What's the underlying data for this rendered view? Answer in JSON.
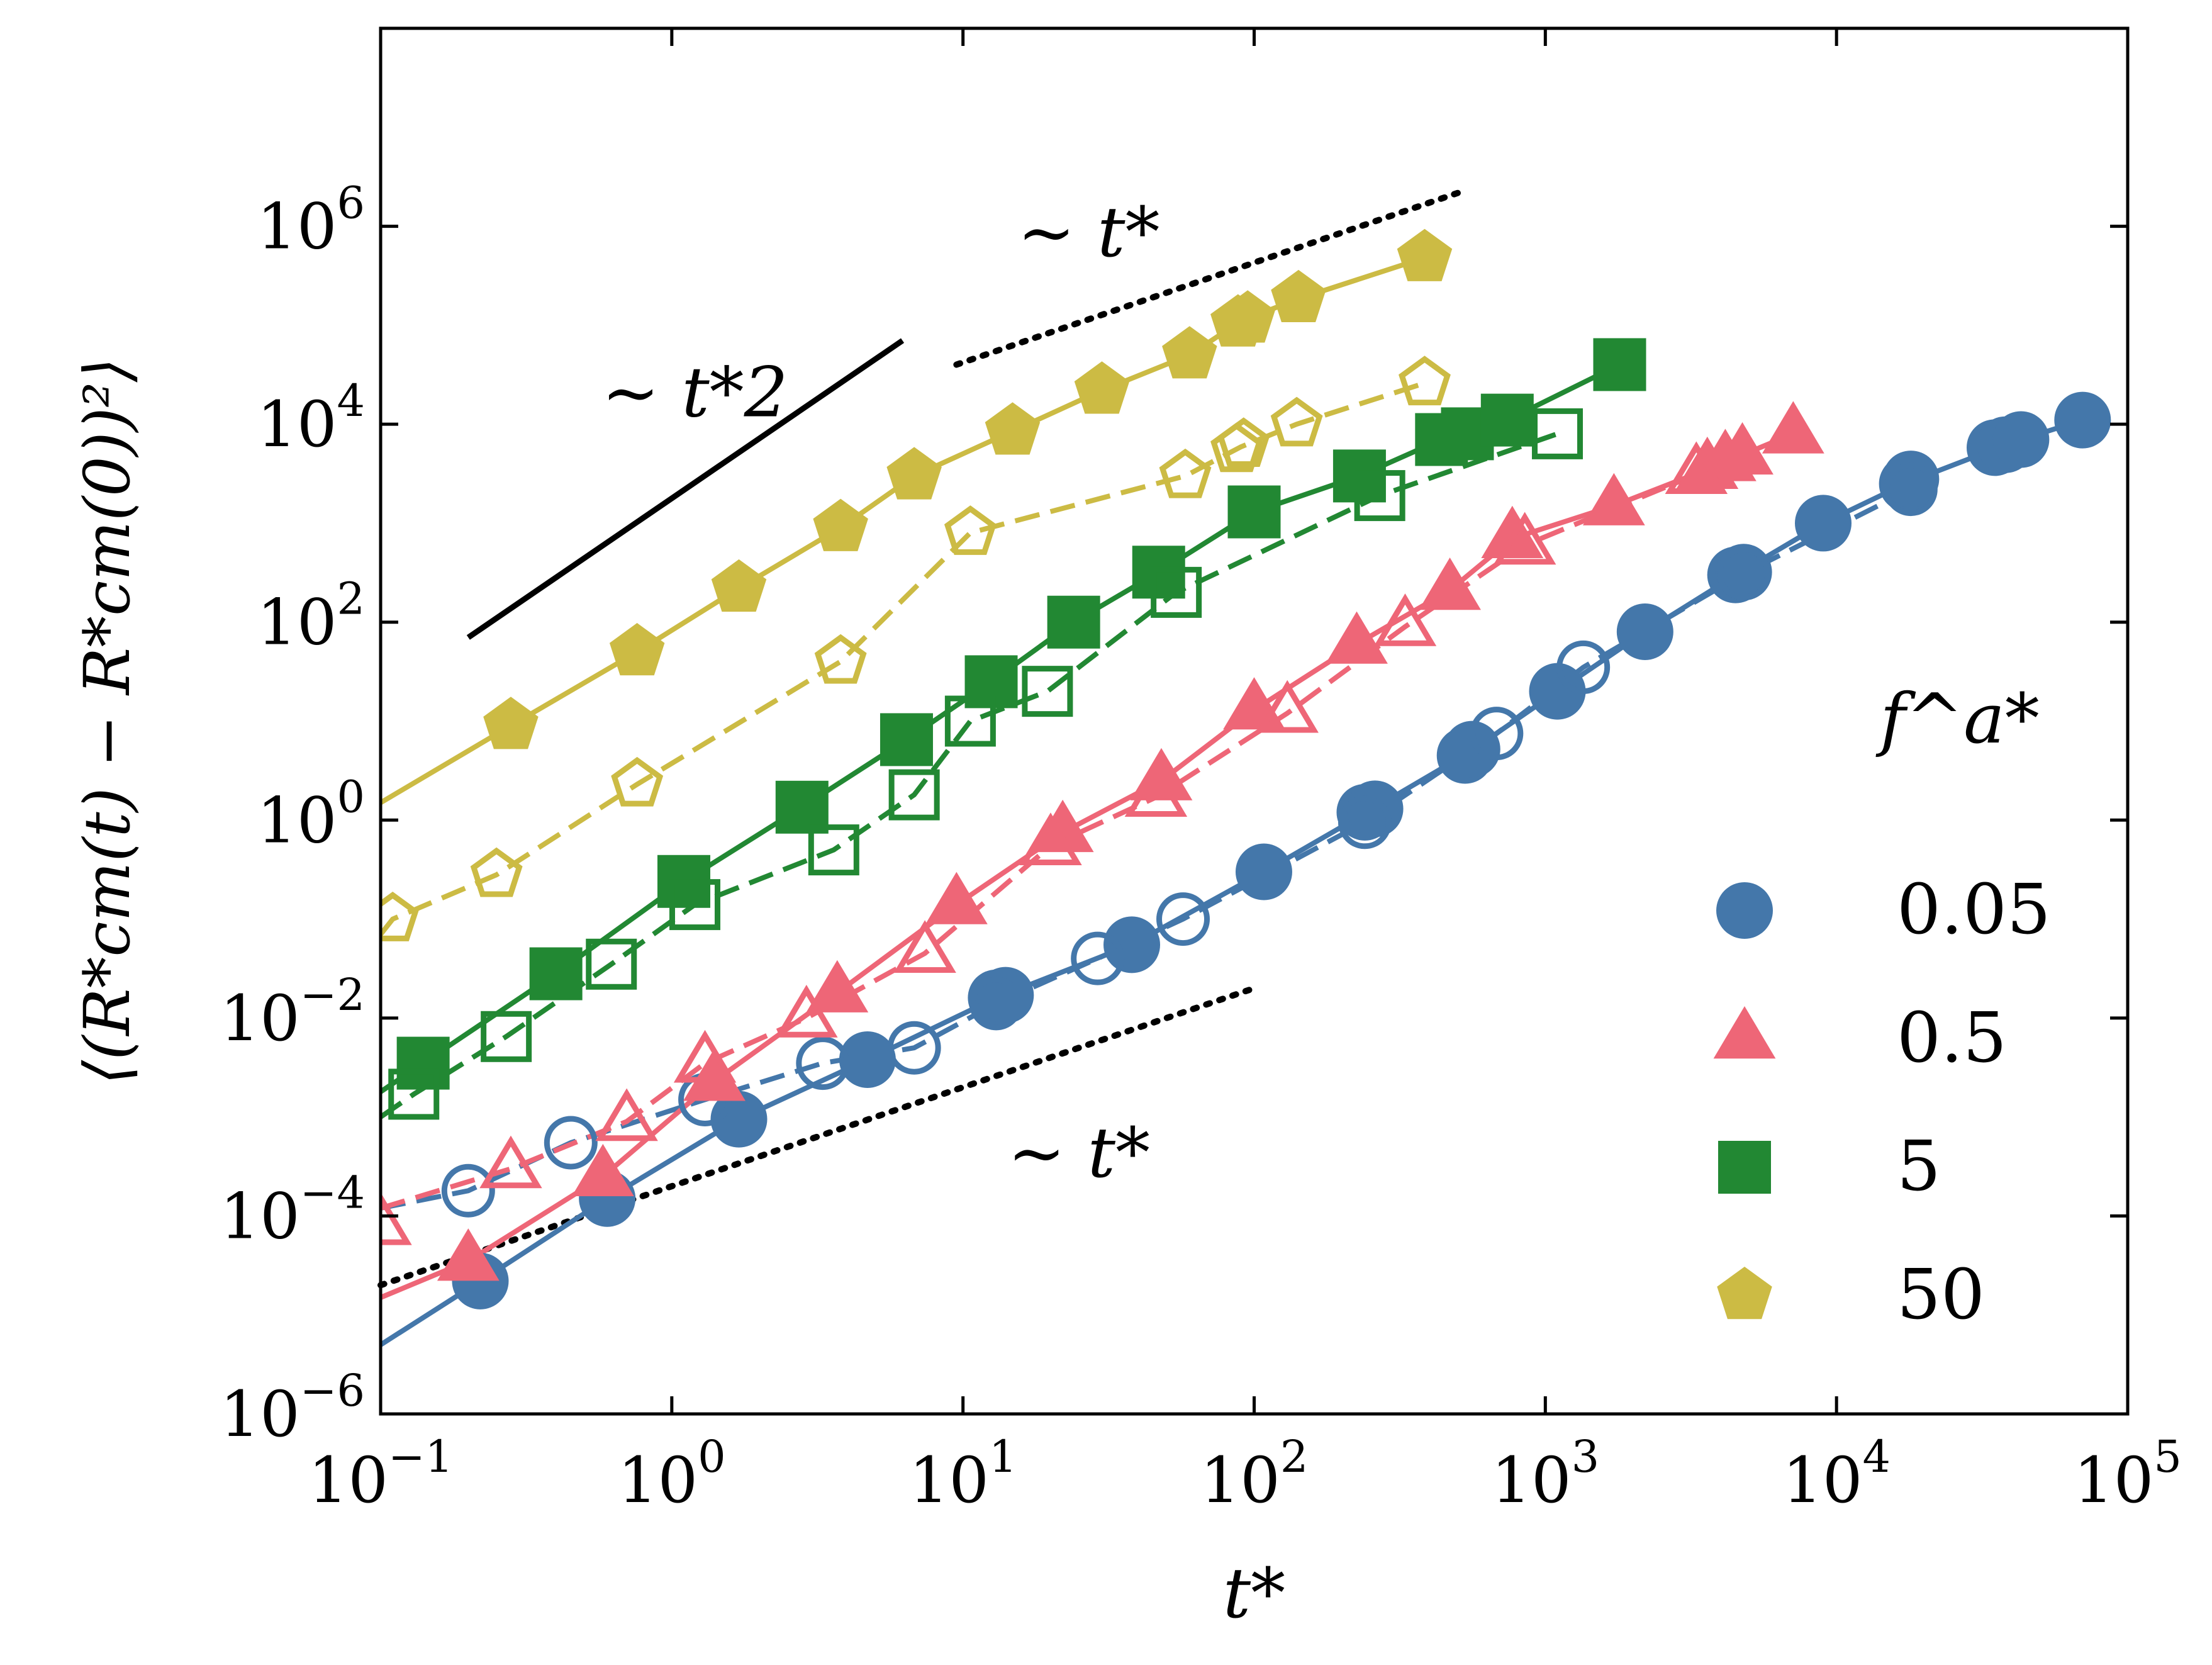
{
  "chart_data": {
    "type": "scatter",
    "xscale": "log",
    "yscale": "log",
    "xlim": [
      0.1,
      100000
    ],
    "ylim": [
      1e-06,
      100000000
    ],
    "xlabel": "t*",
    "ylabel": "⟨(R*cm(t) − R*cm(0))²⟩",
    "x_ticks": [
      {
        "value": 0.1,
        "base": "10",
        "exp": "−1"
      },
      {
        "value": 1,
        "base": "10",
        "exp": "0"
      },
      {
        "value": 10,
        "base": "10",
        "exp": "1"
      },
      {
        "value": 100,
        "base": "10",
        "exp": "2"
      },
      {
        "value": 1000,
        "base": "10",
        "exp": "3"
      },
      {
        "value": 10000,
        "base": "10",
        "exp": "4"
      },
      {
        "value": 100000,
        "base": "10",
        "exp": "5"
      }
    ],
    "y_ticks": [
      {
        "value": 1e-06,
        "base": "10",
        "exp": "−6"
      },
      {
        "value": 0.0001,
        "base": "10",
        "exp": "−4"
      },
      {
        "value": 0.01,
        "base": "10",
        "exp": "−2"
      },
      {
        "value": 1,
        "base": "10",
        "exp": "0"
      },
      {
        "value": 100,
        "base": "10",
        "exp": "2"
      },
      {
        "value": 10000,
        "base": "10",
        "exp": "4"
      },
      {
        "value": 1000000,
        "base": "10",
        "exp": "6"
      }
    ],
    "legend": {
      "title": "f^a*",
      "position": "lower-right",
      "entries": [
        {
          "label": "0.05",
          "color": "#4477aa",
          "marker": "circle"
        },
        {
          "label": "0.5",
          "color": "#ee6677",
          "marker": "triangle"
        },
        {
          "label": "5",
          "color": "#228833",
          "marker": "square"
        },
        {
          "label": "50",
          "color": "#ccbb44",
          "marker": "pentagon"
        }
      ]
    },
    "series": [
      {
        "name": "0.05",
        "color": "#4477aa",
        "marker": "circle",
        "filled": true,
        "points": [
          [
            0.22,
            2.2e-05
          ],
          [
            0.6,
            0.00015
          ],
          [
            1.7,
            0.00095
          ],
          [
            4.7,
            0.0038
          ],
          [
            13,
            0.016
          ],
          [
            14,
            0.017
          ],
          [
            38,
            0.055
          ],
          [
            108,
            0.3
          ],
          [
            240,
            1.2
          ],
          [
            260,
            1.3
          ],
          [
            530,
            4.5
          ],
          [
            560,
            5.2
          ],
          [
            1100,
            20
          ],
          [
            2200,
            80
          ],
          [
            4500,
            300
          ],
          [
            4800,
            320
          ],
          [
            9000,
            1000
          ],
          [
            17500,
            2500
          ],
          [
            18000,
            2800
          ],
          [
            35000,
            5800
          ],
          [
            38000,
            6200
          ],
          [
            43000,
            7000
          ],
          [
            70000,
            11000
          ]
        ],
        "line": [
          [
            0.1,
            5e-06
          ],
          [
            0.22,
            2.2e-05
          ],
          [
            0.6,
            0.00015
          ],
          [
            1.7,
            0.00095
          ],
          [
            4.7,
            0.0038
          ],
          [
            13,
            0.016
          ],
          [
            38,
            0.055
          ],
          [
            108,
            0.3
          ],
          [
            250,
            1.25
          ],
          [
            545,
            4.8
          ],
          [
            1100,
            20
          ],
          [
            2200,
            80
          ],
          [
            4600,
            310
          ],
          [
            9000,
            1000
          ],
          [
            17700,
            2600
          ],
          [
            36000,
            5800
          ],
          [
            43000,
            7000
          ],
          [
            70000,
            11000
          ]
        ]
      },
      {
        "name": "0.05 open",
        "color": "#4477aa",
        "marker": "circle",
        "filled": false,
        "dashed": true,
        "points": [
          [
            0.2,
            0.00018
          ],
          [
            0.45,
            0.00055
          ],
          [
            1.3,
            0.0015
          ],
          [
            3.3,
            0.0035
          ],
          [
            6.8,
            0.005
          ],
          [
            13,
            0.014
          ],
          [
            29,
            0.04
          ],
          [
            57,
            0.1
          ],
          [
            240,
            0.95
          ],
          [
            680,
            7.5
          ],
          [
            1350,
            35
          ],
          [
            4800,
            310
          ],
          [
            18000,
            2200
          ]
        ],
        "line": [
          [
            0.1,
            0.00012
          ],
          [
            0.2,
            0.00018
          ],
          [
            0.45,
            0.00055
          ],
          [
            1.3,
            0.0015
          ],
          [
            3.3,
            0.0035
          ],
          [
            6.8,
            0.005
          ],
          [
            13,
            0.014
          ],
          [
            29,
            0.04
          ],
          [
            57,
            0.1
          ],
          [
            240,
            0.95
          ],
          [
            680,
            7.5
          ],
          [
            1350,
            35
          ],
          [
            4800,
            310
          ],
          [
            18000,
            2200
          ]
        ]
      },
      {
        "name": "0.5",
        "color": "#ee6677",
        "marker": "triangle",
        "filled": true,
        "points": [
          [
            0.2,
            3.5e-05
          ],
          [
            0.58,
            0.00025
          ],
          [
            1.4,
            0.0023
          ],
          [
            3.7,
            0.018
          ],
          [
            9.5,
            0.14
          ],
          [
            22,
            0.75
          ],
          [
            48,
            2.5
          ],
          [
            100,
            13
          ],
          [
            225,
            60
          ],
          [
            470,
            210
          ],
          [
            770,
            700
          ],
          [
            1720,
            1500
          ],
          [
            3600,
            3500
          ],
          [
            4150,
            4200
          ],
          [
            4750,
            4900
          ],
          [
            7100,
            8000
          ]
        ],
        "line": [
          [
            0.1,
            1.5e-05
          ],
          [
            0.2,
            3.5e-05
          ],
          [
            0.58,
            0.00025
          ],
          [
            1.4,
            0.0023
          ],
          [
            3.7,
            0.018
          ],
          [
            9.5,
            0.14
          ],
          [
            22,
            0.75
          ],
          [
            48,
            2.5
          ],
          [
            100,
            13
          ],
          [
            225,
            60
          ],
          [
            470,
            210
          ],
          [
            770,
            700
          ],
          [
            1720,
            1500
          ],
          [
            3600,
            3500
          ],
          [
            4750,
            4900
          ],
          [
            7100,
            8000
          ]
        ]
      },
      {
        "name": "0.5 open",
        "color": "#ee6677",
        "marker": "triangle",
        "filled": false,
        "dashed": true,
        "points": [
          [
            0.1,
            8e-05
          ],
          [
            0.28,
            0.0003
          ],
          [
            0.7,
            0.0009
          ],
          [
            1.3,
            0.0035
          ],
          [
            2.9,
            0.01
          ],
          [
            7.4,
            0.045
          ],
          [
            20,
            0.55
          ],
          [
            46,
            1.7
          ],
          [
            130,
            12
          ],
          [
            330,
            90
          ],
          [
            850,
            600
          ],
          [
            3300,
            3100
          ]
        ],
        "line": [
          [
            0.1,
            0.00012
          ],
          [
            0.28,
            0.0003
          ],
          [
            0.7,
            0.0009
          ],
          [
            1.3,
            0.0035
          ],
          [
            2.9,
            0.01
          ],
          [
            7.4,
            0.045
          ],
          [
            20,
            0.55
          ],
          [
            46,
            1.7
          ],
          [
            130,
            12
          ],
          [
            330,
            90
          ],
          [
            850,
            600
          ],
          [
            3300,
            3100
          ]
        ]
      },
      {
        "name": "5",
        "color": "#228833",
        "marker": "square",
        "filled": true,
        "points": [
          [
            0.14,
            0.0035
          ],
          [
            0.4,
            0.028
          ],
          [
            1.1,
            0.24
          ],
          [
            2.8,
            1.35
          ],
          [
            6.4,
            6.5
          ],
          [
            12.5,
            25
          ],
          [
            24,
            100
          ],
          [
            47,
            320
          ],
          [
            100,
            1300
          ],
          [
            230,
            3000
          ],
          [
            440,
            7000
          ],
          [
            540,
            8000
          ],
          [
            740,
            11000
          ],
          [
            1800,
            40000
          ]
        ],
        "line": [
          [
            0.1,
            0.0018
          ],
          [
            0.14,
            0.0035
          ],
          [
            0.4,
            0.028
          ],
          [
            1.1,
            0.24
          ],
          [
            2.8,
            1.35
          ],
          [
            6.4,
            6.5
          ],
          [
            12.5,
            25
          ],
          [
            24,
            100
          ],
          [
            47,
            320
          ],
          [
            100,
            1300
          ],
          [
            230,
            3000
          ],
          [
            440,
            7000
          ],
          [
            740,
            11000
          ],
          [
            1800,
            40000
          ]
        ]
      },
      {
        "name": "5 open",
        "color": "#228833",
        "marker": "square",
        "filled": false,
        "dashed": true,
        "points": [
          [
            0.13,
            0.0017
          ],
          [
            0.27,
            0.0065
          ],
          [
            0.62,
            0.035
          ],
          [
            1.2,
            0.14
          ],
          [
            3.6,
            0.5
          ],
          [
            6.8,
            1.8
          ],
          [
            10.6,
            10
          ],
          [
            19.5,
            20
          ],
          [
            54,
            200
          ],
          [
            270,
            1900
          ],
          [
            1100,
            8000
          ]
        ],
        "line": [
          [
            0.1,
            0.001
          ],
          [
            0.13,
            0.0017
          ],
          [
            0.27,
            0.0065
          ],
          [
            0.62,
            0.035
          ],
          [
            1.2,
            0.14
          ],
          [
            3.6,
            0.5
          ],
          [
            6.8,
            1.8
          ],
          [
            10.6,
            10
          ],
          [
            19.5,
            20
          ],
          [
            54,
            200
          ],
          [
            270,
            1900
          ],
          [
            1100,
            8000
          ]
        ]
      },
      {
        "name": "50",
        "color": "#ccbb44",
        "marker": "pentagon",
        "filled": true,
        "points": [
          [
            0.28,
            9
          ],
          [
            0.76,
            50
          ],
          [
            1.7,
            220
          ],
          [
            3.8,
            900
          ],
          [
            6.8,
            3000
          ],
          [
            14.8,
            8500
          ],
          [
            30,
            22000
          ],
          [
            60,
            50000
          ],
          [
            88,
            105000
          ],
          [
            95,
            115000
          ],
          [
            142,
            185000
          ],
          [
            385,
            480000
          ]
        ],
        "line": [
          [
            0.1,
            1.5
          ],
          [
            0.28,
            9
          ],
          [
            0.76,
            50
          ],
          [
            1.7,
            220
          ],
          [
            3.8,
            900
          ],
          [
            6.8,
            3000
          ],
          [
            14.8,
            8500
          ],
          [
            30,
            22000
          ],
          [
            60,
            50000
          ],
          [
            90,
            110000
          ],
          [
            142,
            185000
          ],
          [
            385,
            480000
          ]
        ]
      },
      {
        "name": "50 open",
        "color": "#ccbb44",
        "marker": "pentagon",
        "filled": false,
        "dashed": true,
        "points": [
          [
            0.11,
            0.1
          ],
          [
            0.25,
            0.28
          ],
          [
            0.76,
            2.3
          ],
          [
            3.8,
            40
          ],
          [
            10.6,
            800
          ],
          [
            58,
            3000
          ],
          [
            87,
            5500
          ],
          [
            92,
            6200
          ],
          [
            140,
            10000
          ],
          [
            385,
            26000
          ]
        ],
        "line": [
          [
            0.1,
            0.07
          ],
          [
            0.11,
            0.1
          ],
          [
            0.25,
            0.28
          ],
          [
            0.76,
            2.3
          ],
          [
            3.8,
            40
          ],
          [
            10.6,
            800
          ],
          [
            58,
            3000
          ],
          [
            90,
            5900
          ],
          [
            140,
            10000
          ],
          [
            385,
            26000
          ]
        ]
      }
    ],
    "guides": [
      {
        "label": "~ t*2",
        "style": "solid",
        "from": [
          0.2,
          70
        ],
        "to": [
          6.2,
          70000
        ]
      },
      {
        "label": "~ t*",
        "style": "dotted",
        "from": [
          9.5,
          40000
        ],
        "to": [
          530,
          2300000
        ]
      },
      {
        "label": "~ t*",
        "style": "dotted",
        "from": [
          0.1,
          2e-05
        ],
        "to": [
          100,
          0.02
        ]
      }
    ],
    "annotations": [
      {
        "text": "~ t*2",
        "x": 1.2,
        "y": 12000
      },
      {
        "text": "~ t*",
        "x": 27,
        "y": 500000
      },
      {
        "text": "~ t*",
        "x": 25,
        "y": 0.00025
      }
    ]
  }
}
